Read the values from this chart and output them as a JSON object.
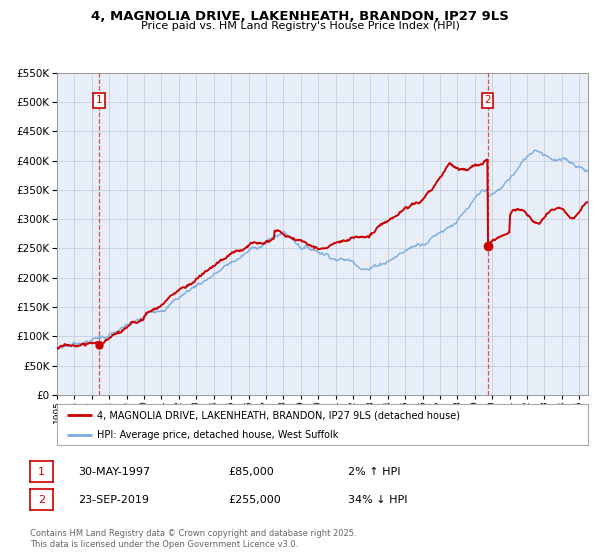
{
  "title": "4, MAGNOLIA DRIVE, LAKENHEATH, BRANDON, IP27 9LS",
  "subtitle": "Price paid vs. HM Land Registry's House Price Index (HPI)",
  "legend_entry1": "4, MAGNOLIA DRIVE, LAKENHEATH, BRANDON, IP27 9LS (detached house)",
  "legend_entry2": "HPI: Average price, detached house, West Suffolk",
  "marker1_date": 1997.41,
  "marker1_price": 85000,
  "marker1_text": "30-MAY-1997",
  "marker1_pct": "2% ↑ HPI",
  "marker2_date": 2019.73,
  "marker2_price": 255000,
  "marker2_text": "23-SEP-2019",
  "marker2_pct": "34% ↓ HPI",
  "footer": "Contains HM Land Registry data © Crown copyright and database right 2025.\nThis data is licensed under the Open Government Licence v3.0.",
  "red_color": "#cc0000",
  "blue_color": "#7aabdc",
  "bg_color": "#e8eef8",
  "grid_color": "#c5cfe0",
  "ylim_max": 550000,
  "xlim_start": 1995.0,
  "xlim_end": 2025.5
}
